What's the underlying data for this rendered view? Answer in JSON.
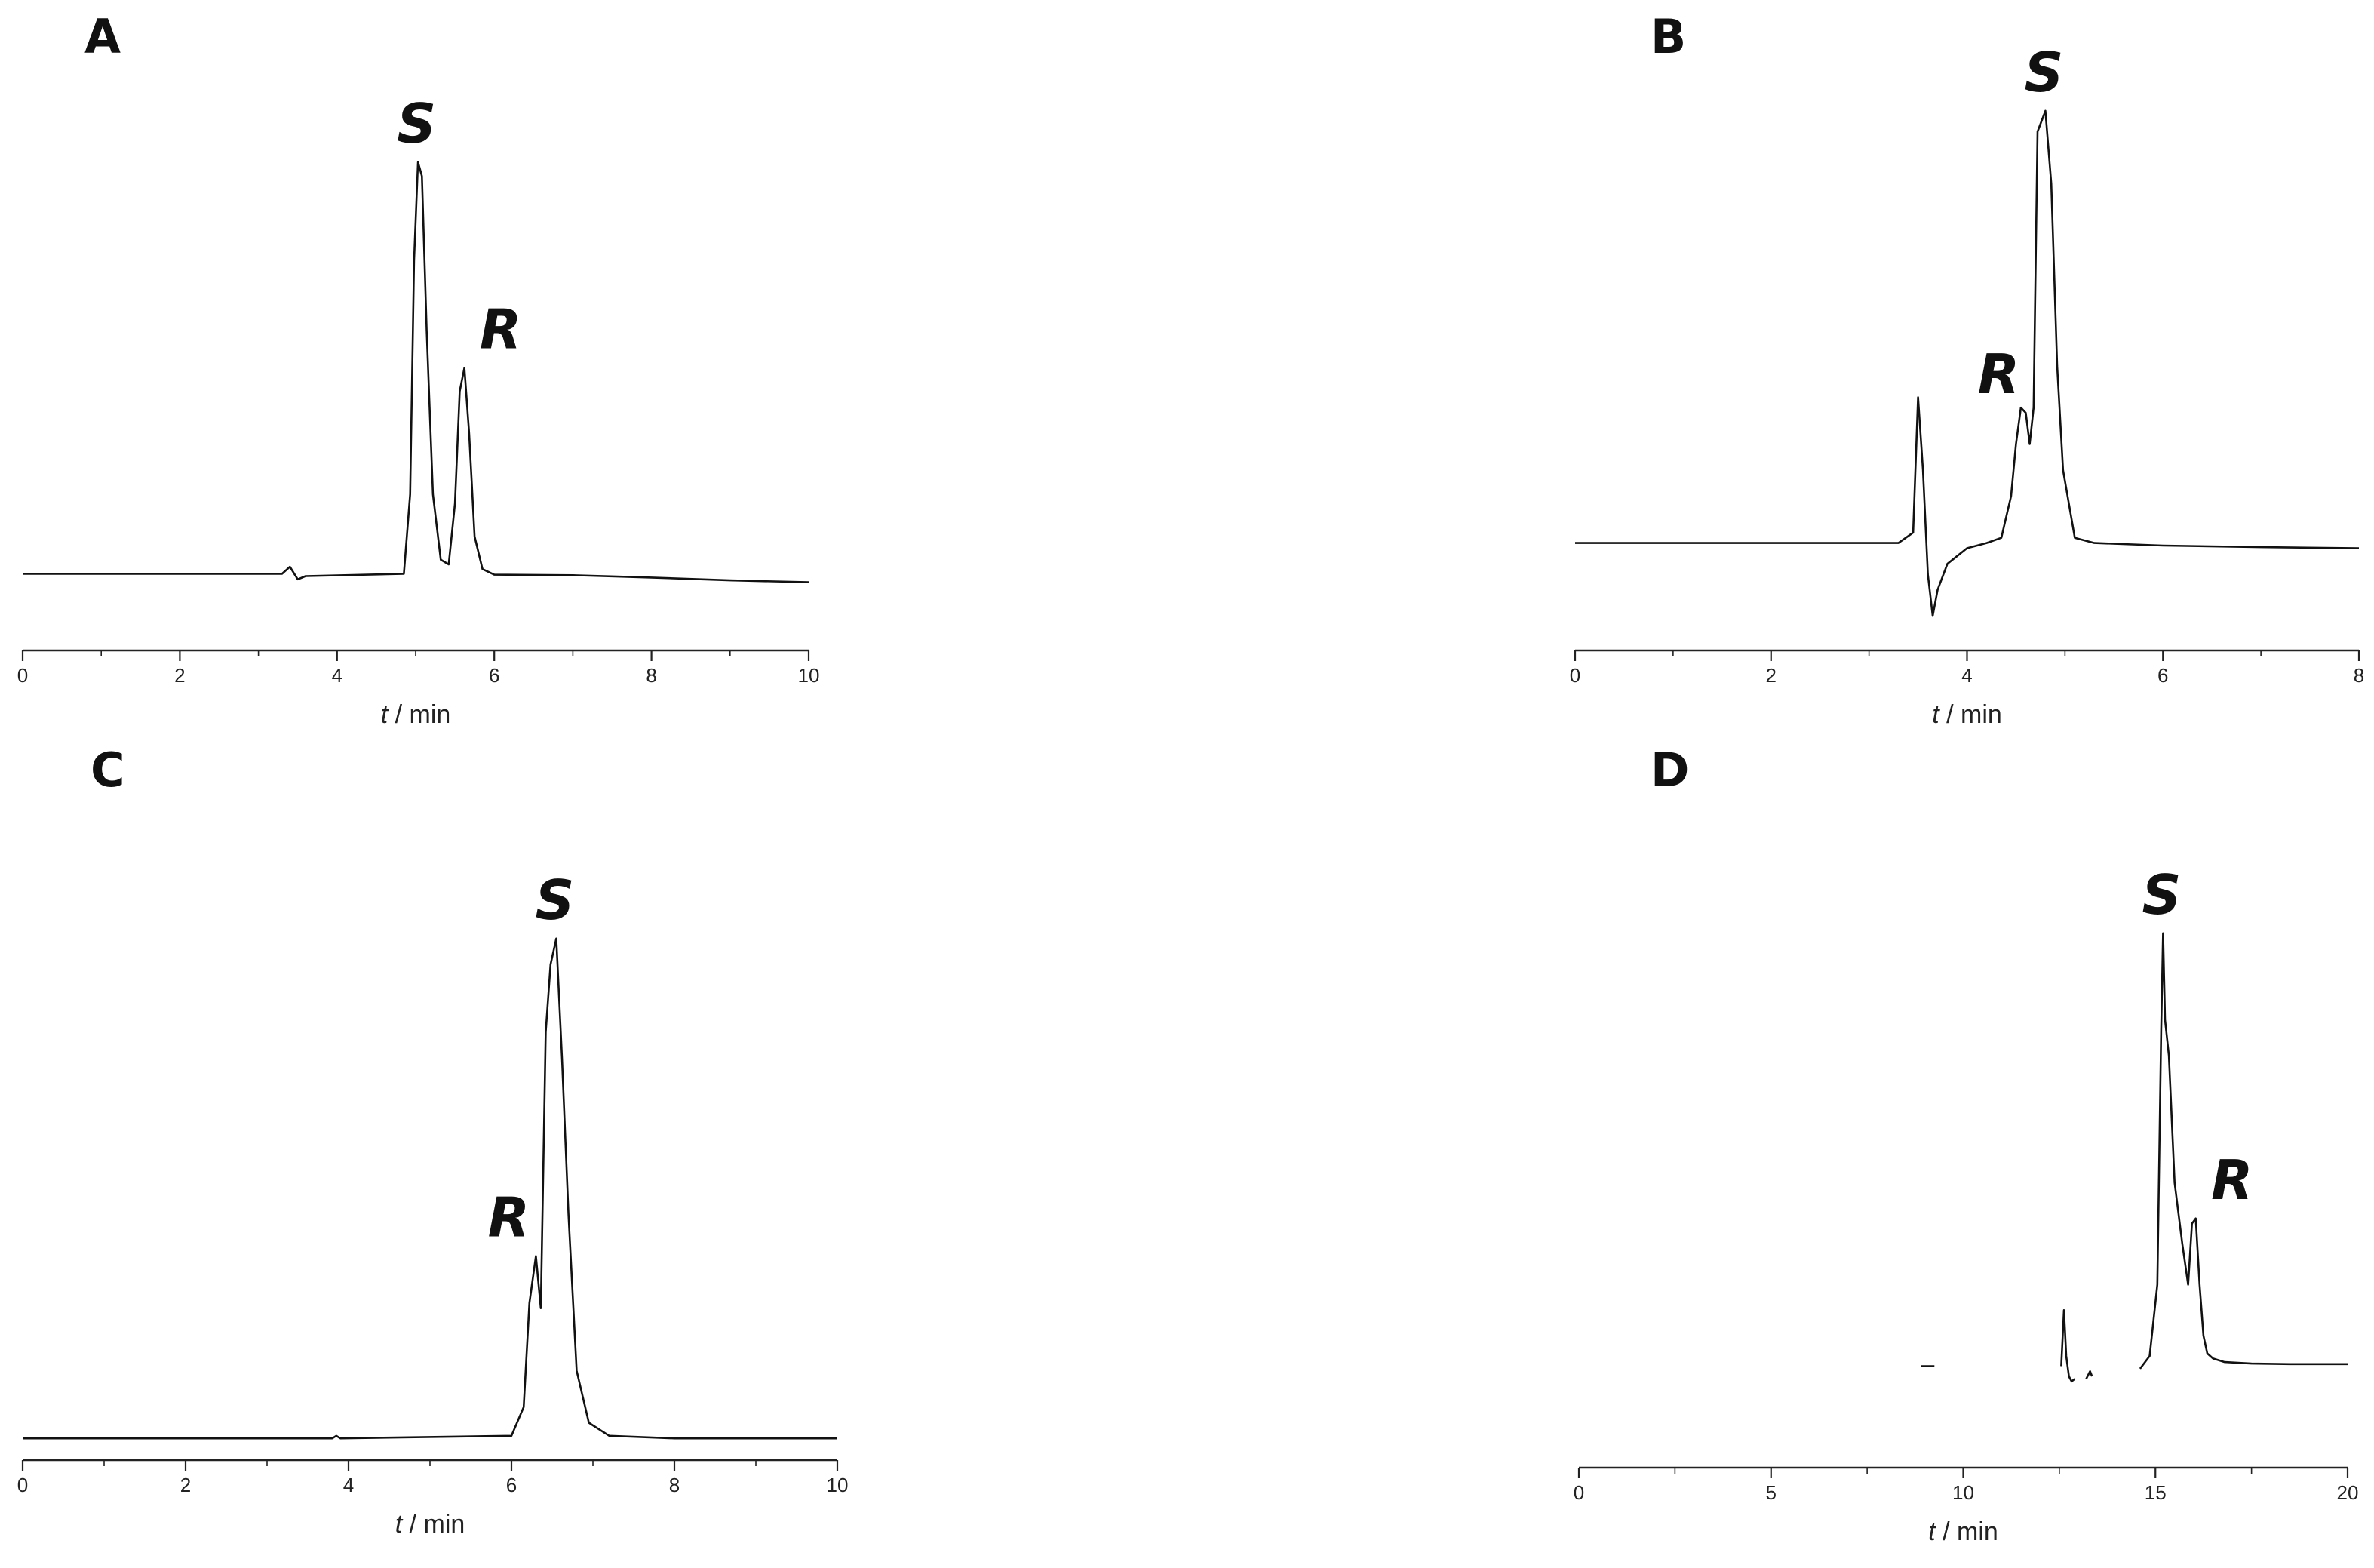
{
  "chart_data": [
    {
      "panel": "A",
      "type": "line",
      "xlabel_italic": "t",
      "xlabel_rest": " / min",
      "xlim": [
        0,
        10
      ],
      "xticks": [
        0,
        2,
        4,
        6,
        8,
        10
      ],
      "ylim": [
        0,
        1
      ],
      "x": [
        0,
        2.7,
        3.3,
        3.4,
        3.5,
        3.6,
        4.85,
        4.93,
        4.98,
        5.03,
        5.08,
        5.14,
        5.22,
        5.32,
        5.42,
        5.5,
        5.56,
        5.62,
        5.68,
        5.75,
        5.85,
        6.0,
        7.0,
        8.0,
        9.0,
        10.0
      ],
      "y": [
        0.08,
        0.08,
        0.08,
        0.095,
        0.068,
        0.075,
        0.08,
        0.25,
        0.75,
        0.96,
        0.93,
        0.6,
        0.25,
        0.11,
        0.1,
        0.23,
        0.47,
        0.52,
        0.38,
        0.16,
        0.09,
        0.078,
        0.077,
        0.072,
        0.066,
        0.062
      ],
      "peaks": [
        {
          "label": "S",
          "x": 5.03,
          "y": 0.96
        },
        {
          "label": "R",
          "x": 5.62,
          "y": 0.52
        }
      ]
    },
    {
      "panel": "B",
      "type": "line",
      "xlabel_italic": "t",
      "xlabel_rest": " / min",
      "xlim": [
        0,
        8
      ],
      "xticks": [
        0,
        2,
        4,
        6,
        8
      ],
      "ylim": [
        0,
        1
      ],
      "x": [
        0,
        3.3,
        3.45,
        3.5,
        3.55,
        3.6,
        3.65,
        3.7,
        3.8,
        4.0,
        4.2,
        4.35,
        4.45,
        4.5,
        4.55,
        4.6,
        4.64,
        4.68,
        4.72,
        4.8,
        4.86,
        4.92,
        4.98,
        5.1,
        5.3,
        6.0,
        7.0,
        8.0
      ],
      "y": [
        0.16,
        0.16,
        0.18,
        0.44,
        0.3,
        0.1,
        0.02,
        0.07,
        0.12,
        0.15,
        0.16,
        0.17,
        0.25,
        0.35,
        0.42,
        0.41,
        0.35,
        0.42,
        0.95,
        0.99,
        0.85,
        0.5,
        0.3,
        0.17,
        0.16,
        0.155,
        0.152,
        0.15
      ],
      "peaks": [
        {
          "label": "R",
          "x": 4.6,
          "y": 0.41
        },
        {
          "label": "S",
          "x": 4.8,
          "y": 0.99
        }
      ]
    },
    {
      "panel": "C",
      "type": "line",
      "xlabel_italic": "t",
      "xlabel_rest": " / min",
      "xlim": [
        0,
        10
      ],
      "xticks": [
        0,
        2,
        4,
        6,
        8,
        10
      ],
      "ylim": [
        0,
        1
      ],
      "x": [
        0,
        3.8,
        3.85,
        3.9,
        6.0,
        6.15,
        6.22,
        6.3,
        6.36,
        6.42,
        6.48,
        6.55,
        6.62,
        6.7,
        6.8,
        6.95,
        7.2,
        8.0,
        10.0
      ],
      "y": [
        0.02,
        0.02,
        0.025,
        0.02,
        0.025,
        0.08,
        0.28,
        0.37,
        0.27,
        0.8,
        0.93,
        0.98,
        0.75,
        0.45,
        0.15,
        0.05,
        0.025,
        0.02,
        0.02
      ],
      "peaks": [
        {
          "label": "R",
          "x": 6.3,
          "y": 0.37
        },
        {
          "label": "S",
          "x": 6.55,
          "y": 0.98
        }
      ]
    },
    {
      "panel": "D",
      "type": "line",
      "xlabel_italic": "t",
      "xlabel_rest": " / min",
      "xlim": [
        0,
        20
      ],
      "xticks": [
        0,
        5,
        10,
        15,
        20
      ],
      "ylim": [
        0,
        1
      ],
      "segments": [
        {
          "x": [
            8.9,
            9.25
          ],
          "y": [
            0.14,
            0.14
          ]
        },
        {
          "x": [
            12.55,
            12.62,
            12.68,
            12.75,
            12.82,
            12.9
          ],
          "y": [
            0.14,
            0.25,
            0.16,
            0.12,
            0.11,
            0.115
          ]
        },
        {
          "x": [
            13.2,
            13.3,
            13.35
          ],
          "y": [
            0.115,
            0.13,
            0.12
          ]
        },
        {
          "x": [
            14.6,
            14.85,
            15.05,
            15.15,
            15.2,
            15.25,
            15.35,
            15.5,
            15.7,
            15.85,
            15.95,
            16.05,
            16.15,
            16.25,
            16.35,
            16.5,
            16.8,
            17.5,
            18.5,
            20.0
          ],
          "y": [
            0.135,
            0.16,
            0.3,
            0.8,
            0.99,
            0.82,
            0.75,
            0.5,
            0.38,
            0.3,
            0.42,
            0.43,
            0.3,
            0.2,
            0.165,
            0.155,
            0.148,
            0.145,
            0.144,
            0.144
          ]
        }
      ],
      "peaks": [
        {
          "label": "S",
          "x": 15.2,
          "y": 0.99
        },
        {
          "label": "R",
          "x": 16.05,
          "y": 0.43
        }
      ]
    }
  ]
}
